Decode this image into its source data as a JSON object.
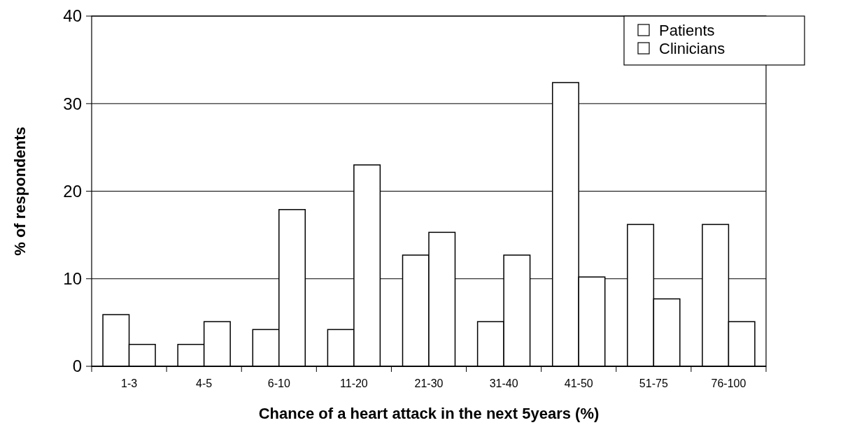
{
  "chart_data": {
    "type": "bar",
    "xlabel": "Chance of a heart attack in the next  5years (%)",
    "ylabel": "% of respondents",
    "categories": [
      "1-3",
      "4-5",
      "6-10",
      "11-20",
      "21-30",
      "31-40",
      "41-50",
      "51-75",
      "76-100"
    ],
    "series": [
      {
        "name": "Patients",
        "color": "#ffffff",
        "values": [
          5.9,
          2.5,
          4.2,
          4.2,
          12.7,
          5.1,
          32.4,
          16.2,
          16.2
        ]
      },
      {
        "name": "Clinicians",
        "color": "#ffffff",
        "values": [
          2.5,
          5.1,
          17.9,
          23.0,
          15.3,
          12.7,
          10.2,
          7.7,
          5.1
        ]
      }
    ],
    "ylim": [
      0,
      40
    ],
    "yticks": [
      0,
      10,
      20,
      30,
      40
    ],
    "grid": "y",
    "legend": "top right"
  }
}
